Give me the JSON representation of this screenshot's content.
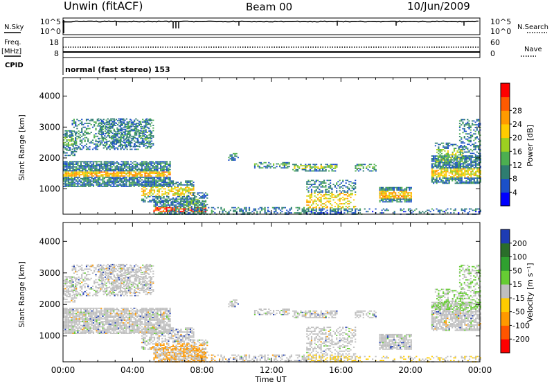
{
  "header": {
    "station": "Unwin (fitACF)",
    "beam": "Beam 00",
    "date": "10/Jun/2009"
  },
  "left_labels": {
    "nsky": "N.Sky",
    "freq": "Freq.",
    "mhz": "[MHz]",
    "cpid": "CPID"
  },
  "right_labels": {
    "nsearch": "N.Search",
    "nave": "Nave"
  },
  "strip_ticks": {
    "noise_left_top": "10^5",
    "noise_left_bottom": "10^0",
    "noise_right_top": "10^5",
    "noise_right_bottom": "10^0",
    "freq_left_top": "18",
    "freq_left_bottom": "8",
    "nave_right_top": "60",
    "nave_right_bottom": "0"
  },
  "cpid_text": "normal (fast stereo) 153",
  "chart_data": [
    {
      "type": "heatmap",
      "name": "power",
      "ylabel": "Slant Range [km]",
      "xlabel": "Time UT",
      "xlim": [
        "00:00",
        "24:00"
      ],
      "ylim": [
        180,
        4600
      ],
      "y_ticks": [
        1000,
        2000,
        3000,
        4000
      ],
      "colorbar_label": "Power [dB]",
      "colorbar_ticks": [
        "4",
        "8",
        "12",
        "16",
        "20",
        "24",
        "28"
      ],
      "colorbar_colors": [
        "#0000ff",
        "#1b50c8",
        "#2e7d70",
        "#4caf50",
        "#9cd020",
        "#ffcc00",
        "#ff9a00",
        "#ff5a00",
        "#ff0000"
      ]
    },
    {
      "type": "heatmap",
      "name": "velocity",
      "ylabel": "Slant Range [km]",
      "xlabel": "Time UT",
      "xlim": [
        "00:00",
        "24:00"
      ],
      "ylim": [
        180,
        4600
      ],
      "y_ticks": [
        1000,
        2000,
        3000,
        4000
      ],
      "colorbar_label": "Velocity [m s⁻¹]",
      "colorbar_ticks": [
        "200",
        "100",
        "50",
        "15",
        "-15",
        "-50",
        "-100",
        "-200"
      ],
      "colorbar_colors": [
        "#1e3cb4",
        "#2a6e2a",
        "#2fa02f",
        "#66cc33",
        "#bfbfbf",
        "#ffcc00",
        "#ff9900",
        "#ff5500",
        "#ff0000"
      ]
    }
  ],
  "x_ticks": [
    "00:00",
    "04:00",
    "08:00",
    "12:00",
    "16:00",
    "20:00",
    "00:00"
  ],
  "x_title": "Time UT"
}
